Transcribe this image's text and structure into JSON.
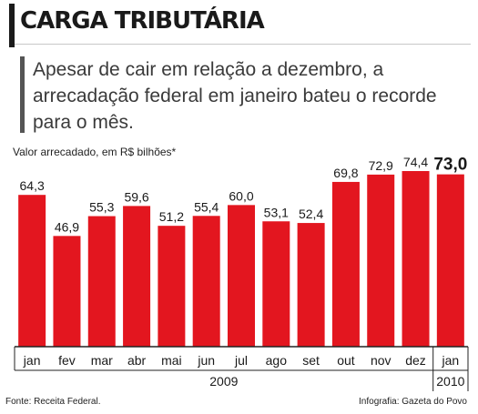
{
  "title": "CARGA TRIBUTÁRIA",
  "subtitle": "Apesar de cair em relação a dezembro, a arrecadação federal em janeiro bateu o recorde para o mês.",
  "unit_label": "Valor arrecadado, em R$ bilhões*",
  "source": "Fonte: Receita Federal.",
  "credit": "Infografia: Gazeta do Povo",
  "colors": {
    "bar": "#e3161f",
    "axis": "#222222"
  },
  "chart_data": {
    "type": "bar",
    "categories": [
      "jan",
      "fev",
      "mar",
      "abr",
      "mai",
      "jun",
      "jul",
      "ago",
      "set",
      "out",
      "nov",
      "dez",
      "jan"
    ],
    "values": [
      64.3,
      46.9,
      55.3,
      59.6,
      51.2,
      55.4,
      60.0,
      53.1,
      52.4,
      69.8,
      72.9,
      74.4,
      73.0
    ],
    "value_labels": [
      "64,3",
      "46,9",
      "55,3",
      "59,6",
      "51,2",
      "55,4",
      "60,0",
      "53,1",
      "52,4",
      "69,8",
      "72,9",
      "74,4",
      "73,0"
    ],
    "year_labels": [
      "2009",
      "2010"
    ],
    "highlight_index": 12,
    "ylim": [
      0,
      74.4
    ],
    "grid": false,
    "legend": "none"
  }
}
